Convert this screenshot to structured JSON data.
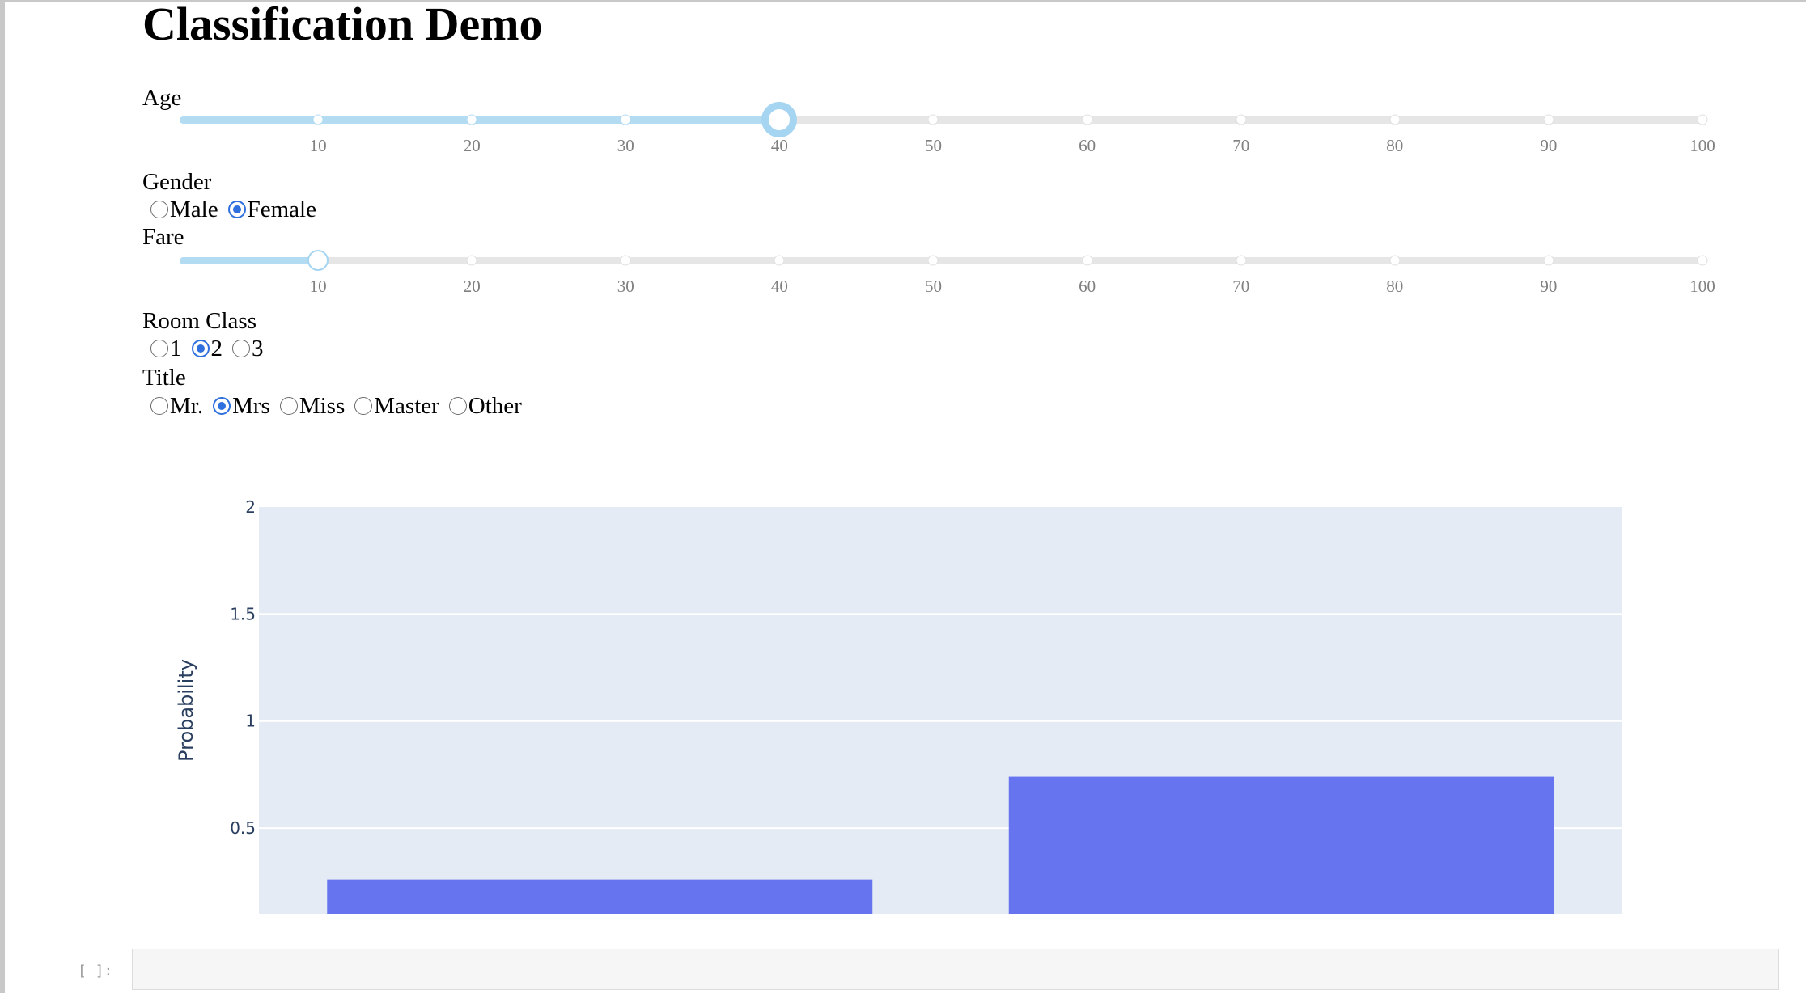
{
  "page": {
    "title": "Classification Demo"
  },
  "age": {
    "label": "Age",
    "value": 40,
    "min": 1,
    "max": 100,
    "ticks": [
      "10",
      "20",
      "30",
      "40",
      "50",
      "60",
      "70",
      "80",
      "90",
      "100"
    ]
  },
  "gender": {
    "label": "Gender",
    "options": [
      {
        "label": "Male",
        "checked": false
      },
      {
        "label": "Female",
        "checked": true
      }
    ]
  },
  "fare": {
    "label": "Fare",
    "value": 10,
    "min": 1,
    "max": 100,
    "ticks": [
      "10",
      "20",
      "30",
      "40",
      "50",
      "60",
      "70",
      "80",
      "90",
      "100"
    ]
  },
  "room_class": {
    "label": "Room Class",
    "options": [
      {
        "label": "1",
        "checked": false
      },
      {
        "label": "2",
        "checked": true
      },
      {
        "label": "3",
        "checked": false
      }
    ]
  },
  "title_field": {
    "label": "Title",
    "options": [
      {
        "label": "Mr.",
        "checked": false
      },
      {
        "label": "Mrs",
        "checked": true
      },
      {
        "label": "Miss",
        "checked": false
      },
      {
        "label": "Master",
        "checked": false
      },
      {
        "label": "Other",
        "checked": false
      }
    ]
  },
  "chart_data": {
    "type": "bar",
    "categories": [
      "",
      ""
    ],
    "values": [
      0.26,
      0.74
    ],
    "ylabel": "Probability",
    "xlabel": "",
    "ylim": [
      0.1,
      2
    ],
    "yticks": [
      0.5,
      1,
      1.5,
      2
    ],
    "ytick_labels": [
      "0.5",
      "1",
      "1.5",
      "2"
    ],
    "grid": true,
    "colors": {
      "bar": "#6774ef",
      "plot_bg": "#e5ebf5",
      "grid": "#ffffff",
      "text": "#2a3f5f"
    }
  },
  "notebook": {
    "prompt": "[ ]:"
  },
  "colors": {
    "slider_fill": "#b3dcf3",
    "slider_track": "#e6e6e6",
    "radio_accent": "#2f6fde"
  }
}
